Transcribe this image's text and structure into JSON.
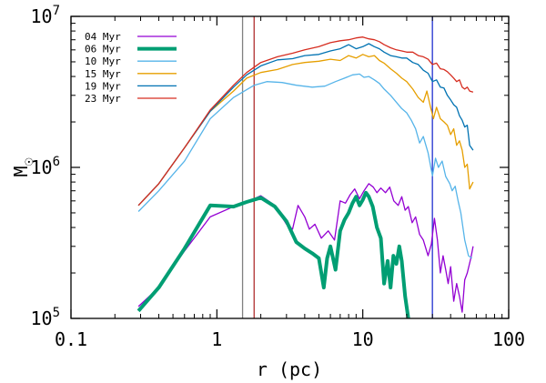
{
  "chart_data": {
    "type": "line",
    "title": "",
    "xlabel": "r (pc)",
    "ylabel": "M",
    "ylabel_symbol": "☉",
    "xscale": "log",
    "yscale": "log",
    "xlim": [
      0.1,
      100
    ],
    "ylim": [
      100000,
      10000000
    ],
    "grid": false,
    "legend_position": "top-left",
    "xticks": [
      {
        "value": 0.1,
        "label": "0.1"
      },
      {
        "value": 1,
        "label": "1"
      },
      {
        "value": 10,
        "label": "10"
      },
      {
        "value": 100,
        "label": "100"
      }
    ],
    "yticks": [
      {
        "value": 100000,
        "base": "10",
        "exp": "5"
      },
      {
        "value": 1000000,
        "base": "10",
        "exp": "6"
      },
      {
        "value": 10000000,
        "base": "10",
        "exp": "7"
      }
    ],
    "vlines": [
      {
        "x": 1.5,
        "color": "#808080"
      },
      {
        "x": 1.8,
        "color": "#b03030"
      },
      {
        "x": 30,
        "color": "#2030d0"
      }
    ],
    "series": [
      {
        "name": "04 Myr",
        "color": "#9400d3",
        "width": 1.3,
        "points": [
          [
            0.29,
            120000
          ],
          [
            0.4,
            160000
          ],
          [
            0.6,
            280000
          ],
          [
            0.9,
            470000
          ],
          [
            1.3,
            550000
          ],
          [
            1.8,
            620000
          ],
          [
            2.0,
            650000
          ],
          [
            2.5,
            560000
          ],
          [
            3.0,
            420000
          ],
          [
            3.3,
            390000
          ],
          [
            3.6,
            560000
          ],
          [
            4.0,
            470000
          ],
          [
            4.3,
            390000
          ],
          [
            4.7,
            420000
          ],
          [
            5.2,
            340000
          ],
          [
            5.8,
            380000
          ],
          [
            6.4,
            330000
          ],
          [
            7.0,
            600000
          ],
          [
            7.6,
            580000
          ],
          [
            8.2,
            660000
          ],
          [
            8.8,
            720000
          ],
          [
            9.5,
            620000
          ],
          [
            10.2,
            700000
          ],
          [
            11.0,
            780000
          ],
          [
            11.8,
            740000
          ],
          [
            12.5,
            680000
          ],
          [
            13.3,
            730000
          ],
          [
            14.3,
            680000
          ],
          [
            15.3,
            740000
          ],
          [
            16.3,
            600000
          ],
          [
            17.5,
            560000
          ],
          [
            18.5,
            640000
          ],
          [
            19.5,
            520000
          ],
          [
            20.5,
            550000
          ],
          [
            21.8,
            430000
          ],
          [
            23.0,
            470000
          ],
          [
            24.5,
            360000
          ],
          [
            26.0,
            330000
          ],
          [
            28.0,
            260000
          ],
          [
            29.5,
            310000
          ],
          [
            31.0,
            460000
          ],
          [
            32.5,
            330000
          ],
          [
            34.0,
            200000
          ],
          [
            35.5,
            260000
          ],
          [
            37.0,
            210000
          ],
          [
            38.5,
            170000
          ],
          [
            40.0,
            220000
          ],
          [
            42.0,
            130000
          ],
          [
            44.0,
            170000
          ],
          [
            46.0,
            140000
          ],
          [
            48.0,
            110000
          ],
          [
            50.0,
            180000
          ],
          [
            52.0,
            200000
          ],
          [
            55.0,
            250000
          ],
          [
            57.0,
            300000
          ]
        ]
      },
      {
        "name": "06 Myr",
        "color": "#009e73",
        "width": 4,
        "points": [
          [
            0.29,
            112000
          ],
          [
            0.4,
            160000
          ],
          [
            0.6,
            290000
          ],
          [
            0.9,
            560000
          ],
          [
            1.3,
            550000
          ],
          [
            1.6,
            590000
          ],
          [
            2.0,
            630000
          ],
          [
            2.5,
            550000
          ],
          [
            3.0,
            440000
          ],
          [
            3.5,
            320000
          ],
          [
            4.0,
            290000
          ],
          [
            4.5,
            270000
          ],
          [
            5.0,
            250000
          ],
          [
            5.4,
            160000
          ],
          [
            5.7,
            250000
          ],
          [
            6.0,
            300000
          ],
          [
            6.5,
            210000
          ],
          [
            7.0,
            380000
          ],
          [
            7.5,
            450000
          ],
          [
            8.0,
            500000
          ],
          [
            8.5,
            580000
          ],
          [
            9.0,
            640000
          ],
          [
            9.5,
            560000
          ],
          [
            10.0,
            610000
          ],
          [
            10.5,
            680000
          ],
          [
            11.0,
            640000
          ],
          [
            11.7,
            550000
          ],
          [
            12.5,
            400000
          ],
          [
            13.3,
            340000
          ],
          [
            14.0,
            170000
          ],
          [
            14.8,
            240000
          ],
          [
            15.5,
            160000
          ],
          [
            16.2,
            260000
          ],
          [
            17.0,
            230000
          ],
          [
            17.8,
            300000
          ],
          [
            18.5,
            240000
          ],
          [
            19.5,
            140000
          ],
          [
            20.5,
            100000
          ]
        ]
      },
      {
        "name": "10 Myr",
        "color": "#56b4e9",
        "width": 1.3,
        "points": [
          [
            0.29,
            510000
          ],
          [
            0.4,
            700000
          ],
          [
            0.6,
            1100000
          ],
          [
            0.9,
            2100000
          ],
          [
            1.3,
            2900000
          ],
          [
            1.8,
            3500000
          ],
          [
            2.2,
            3700000
          ],
          [
            2.8,
            3650000
          ],
          [
            3.5,
            3500000
          ],
          [
            4.5,
            3400000
          ],
          [
            5.5,
            3450000
          ],
          [
            6.5,
            3700000
          ],
          [
            7.5,
            3900000
          ],
          [
            8.5,
            4100000
          ],
          [
            9.5,
            4150000
          ],
          [
            10.2,
            3950000
          ],
          [
            11.0,
            4000000
          ],
          [
            12.0,
            3800000
          ],
          [
            13.0,
            3600000
          ],
          [
            14.0,
            3300000
          ],
          [
            15.5,
            3000000
          ],
          [
            17.0,
            2700000
          ],
          [
            18.5,
            2450000
          ],
          [
            20.0,
            2300000
          ],
          [
            21.5,
            2050000
          ],
          [
            23.0,
            1800000
          ],
          [
            24.5,
            1450000
          ],
          [
            26.0,
            1600000
          ],
          [
            28.0,
            1250000
          ],
          [
            30.0,
            880000
          ],
          [
            31.5,
            1150000
          ],
          [
            33.0,
            1000000
          ],
          [
            35.0,
            1100000
          ],
          [
            37.0,
            870000
          ],
          [
            39.5,
            780000
          ],
          [
            41.0,
            700000
          ],
          [
            43.0,
            750000
          ],
          [
            45.0,
            600000
          ],
          [
            47.0,
            500000
          ],
          [
            50.0,
            330000
          ],
          [
            53.0,
            260000
          ],
          [
            56.0,
            250000
          ]
        ]
      },
      {
        "name": "15 Myr",
        "color": "#e69f00",
        "width": 1.3,
        "points": [
          [
            0.29,
            560000
          ],
          [
            0.4,
            780000
          ],
          [
            0.6,
            1350000
          ],
          [
            0.9,
            2350000
          ],
          [
            1.3,
            3200000
          ],
          [
            1.6,
            3900000
          ],
          [
            2.0,
            4250000
          ],
          [
            2.6,
            4450000
          ],
          [
            3.3,
            4800000
          ],
          [
            4.0,
            4950000
          ],
          [
            5.0,
            5050000
          ],
          [
            6.0,
            5200000
          ],
          [
            7.0,
            5100000
          ],
          [
            8.0,
            5500000
          ],
          [
            9.0,
            5300000
          ],
          [
            10.0,
            5600000
          ],
          [
            11.0,
            5400000
          ],
          [
            12.0,
            5500000
          ],
          [
            13.0,
            5100000
          ],
          [
            14.0,
            4900000
          ],
          [
            15.5,
            4500000
          ],
          [
            17.0,
            4200000
          ],
          [
            18.5,
            3900000
          ],
          [
            20.0,
            3700000
          ],
          [
            22.0,
            3300000
          ],
          [
            24.0,
            2900000
          ],
          [
            26.0,
            2700000
          ],
          [
            27.5,
            3200000
          ],
          [
            29.0,
            2550000
          ],
          [
            30.5,
            2100000
          ],
          [
            32.0,
            2500000
          ],
          [
            34.0,
            2100000
          ],
          [
            36.0,
            2000000
          ],
          [
            38.0,
            1900000
          ],
          [
            40.0,
            1650000
          ],
          [
            42.0,
            1800000
          ],
          [
            44.0,
            1400000
          ],
          [
            46.0,
            1500000
          ],
          [
            48.0,
            1300000
          ],
          [
            50.0,
            1000000
          ],
          [
            52.0,
            1050000
          ],
          [
            54.0,
            720000
          ],
          [
            57.0,
            800000
          ]
        ]
      },
      {
        "name": "19 Myr",
        "color": "#0072b2",
        "width": 1.3,
        "points": [
          [
            0.29,
            560000
          ],
          [
            0.4,
            780000
          ],
          [
            0.6,
            1350000
          ],
          [
            0.9,
            2350000
          ],
          [
            1.3,
            3400000
          ],
          [
            1.6,
            4100000
          ],
          [
            2.0,
            4700000
          ],
          [
            2.6,
            5150000
          ],
          [
            3.3,
            5250000
          ],
          [
            4.0,
            5500000
          ],
          [
            5.0,
            5600000
          ],
          [
            6.0,
            5900000
          ],
          [
            7.0,
            6100000
          ],
          [
            8.0,
            6500000
          ],
          [
            9.0,
            6100000
          ],
          [
            10.0,
            6300000
          ],
          [
            11.0,
            6600000
          ],
          [
            12.0,
            6300000
          ],
          [
            13.0,
            6100000
          ],
          [
            14.0,
            5800000
          ],
          [
            15.5,
            5500000
          ],
          [
            17.0,
            5400000
          ],
          [
            18.5,
            5300000
          ],
          [
            20.0,
            5300000
          ],
          [
            22.0,
            4950000
          ],
          [
            24.0,
            4800000
          ],
          [
            26.0,
            4400000
          ],
          [
            28.0,
            4200000
          ],
          [
            30.0,
            3700000
          ],
          [
            32.0,
            3800000
          ],
          [
            34.0,
            3400000
          ],
          [
            36.0,
            3350000
          ],
          [
            38.0,
            3000000
          ],
          [
            40.0,
            2800000
          ],
          [
            42.0,
            2600000
          ],
          [
            44.0,
            2500000
          ],
          [
            46.0,
            2200000
          ],
          [
            48.0,
            2050000
          ],
          [
            50.0,
            1850000
          ],
          [
            52.0,
            1900000
          ],
          [
            54.0,
            1400000
          ],
          [
            57.0,
            1300000
          ]
        ]
      },
      {
        "name": "23 Myr",
        "color": "#d62d20",
        "width": 1.3,
        "points": [
          [
            0.29,
            560000
          ],
          [
            0.4,
            780000
          ],
          [
            0.6,
            1350000
          ],
          [
            0.9,
            2400000
          ],
          [
            1.3,
            3500000
          ],
          [
            1.6,
            4250000
          ],
          [
            2.0,
            4950000
          ],
          [
            2.6,
            5400000
          ],
          [
            3.3,
            5700000
          ],
          [
            4.0,
            6000000
          ],
          [
            5.0,
            6300000
          ],
          [
            6.0,
            6700000
          ],
          [
            7.0,
            6900000
          ],
          [
            8.0,
            7000000
          ],
          [
            9.0,
            7200000
          ],
          [
            10.0,
            7300000
          ],
          [
            11.0,
            7100000
          ],
          [
            12.0,
            7000000
          ],
          [
            13.0,
            6800000
          ],
          [
            14.0,
            6500000
          ],
          [
            15.5,
            6200000
          ],
          [
            17.0,
            6000000
          ],
          [
            18.5,
            5900000
          ],
          [
            20.0,
            5800000
          ],
          [
            22.0,
            5800000
          ],
          [
            24.0,
            5500000
          ],
          [
            26.0,
            5400000
          ],
          [
            28.0,
            5200000
          ],
          [
            30.0,
            4800000
          ],
          [
            32.0,
            4900000
          ],
          [
            34.0,
            4500000
          ],
          [
            36.0,
            4450000
          ],
          [
            38.0,
            4300000
          ],
          [
            40.0,
            4100000
          ],
          [
            42.0,
            3900000
          ],
          [
            44.0,
            3700000
          ],
          [
            46.0,
            3800000
          ],
          [
            48.0,
            3400000
          ],
          [
            50.0,
            3300000
          ],
          [
            52.0,
            3400000
          ],
          [
            54.0,
            3200000
          ],
          [
            57.0,
            3150000
          ]
        ]
      }
    ]
  }
}
